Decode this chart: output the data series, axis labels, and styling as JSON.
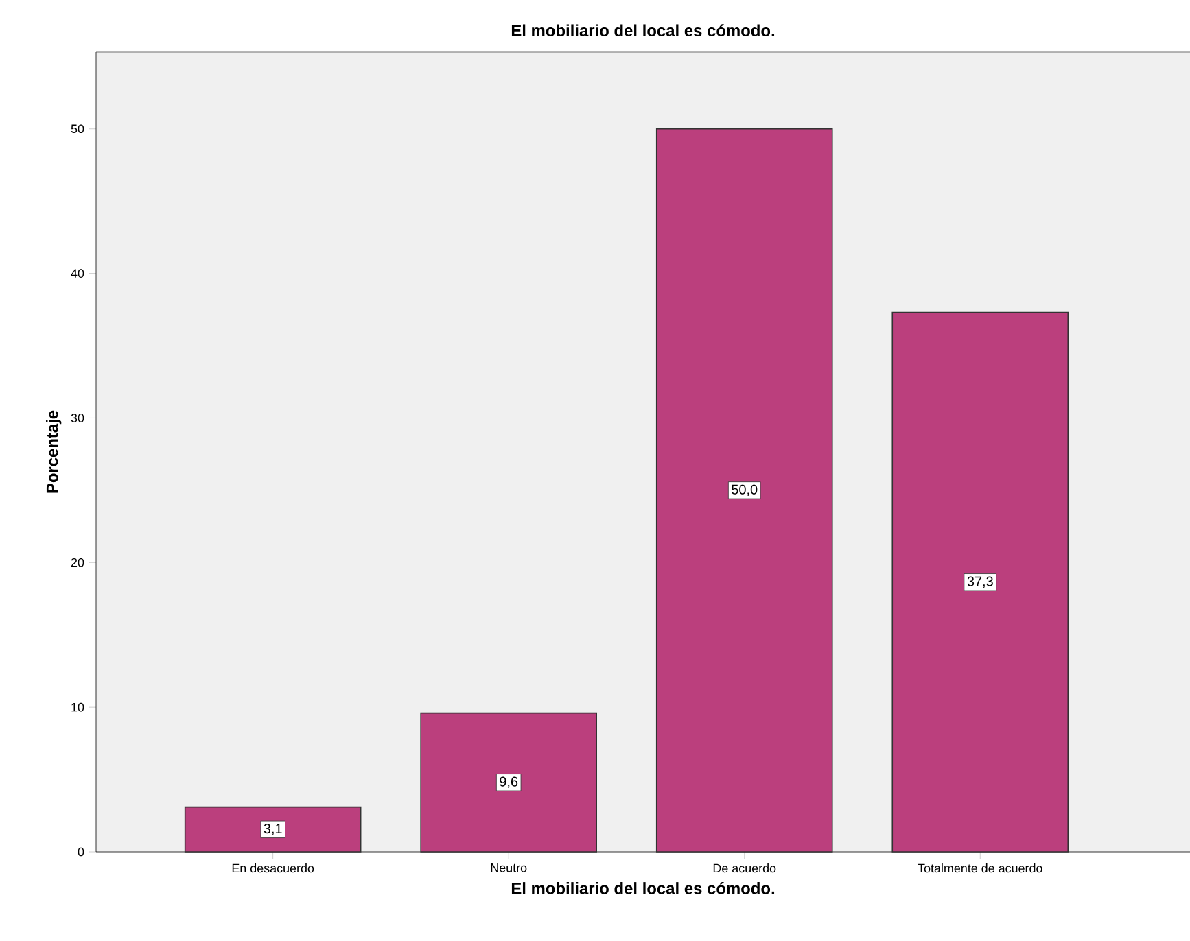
{
  "chart_data": {
    "type": "bar",
    "title": "El mobiliario del local es cómodo.",
    "xlabel": "El mobiliario del local es cómodo.",
    "ylabel": "Porcentaje",
    "categories": [
      "En desacuerdo",
      "Neutro",
      "De acuerdo",
      "Totalmente de acuerdo"
    ],
    "values": [
      3.1,
      9.6,
      50.0,
      37.3
    ],
    "value_labels": [
      "3,1",
      "9,6",
      "50,0",
      "37,3"
    ],
    "color": "#bb3f7d",
    "ylim": [
      0,
      55.3
    ],
    "yticks": [
      0,
      10,
      20,
      30,
      40,
      50
    ],
    "grid": false
  }
}
